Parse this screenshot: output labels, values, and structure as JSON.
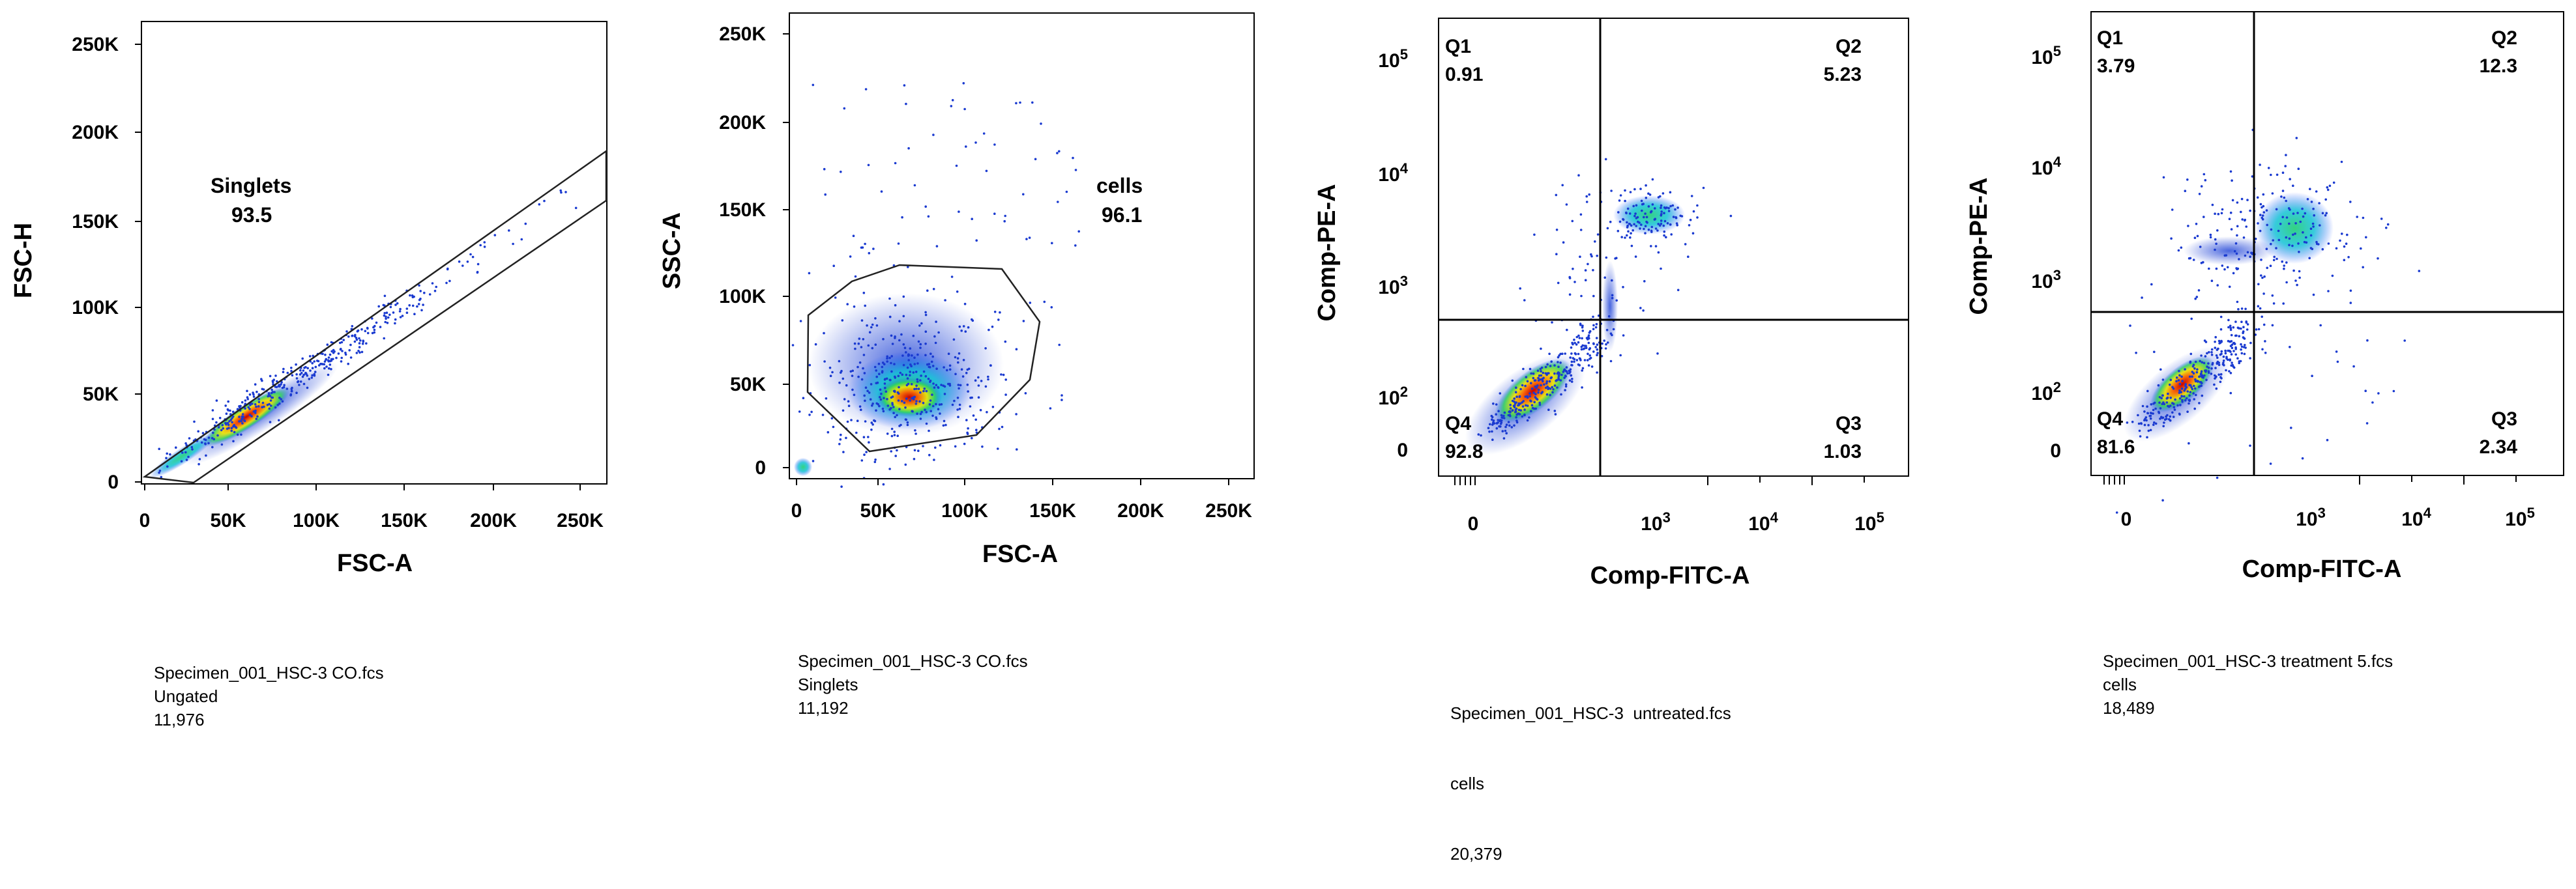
{
  "chart_data": [
    {
      "type": "scatter",
      "xlabel": "FSC-A",
      "ylabel": "FSC-H",
      "xticks": [
        "0",
        "50K",
        "100K",
        "150K",
        "200K",
        "250K"
      ],
      "yticks": [
        "0",
        "50K",
        "100K",
        "150K",
        "200K",
        "250K"
      ],
      "xlim": [
        0,
        262144
      ],
      "ylim": [
        0,
        262144
      ],
      "gate": {
        "name": "Singlets",
        "percent": "93.5"
      },
      "caption": {
        "file": "Specimen_001_HSC-3 CO.fcs",
        "population": "Ungated",
        "count": "11,976"
      }
    },
    {
      "type": "scatter",
      "xlabel": "FSC-A",
      "ylabel": "SSC-A",
      "xticks": [
        "0",
        "50K",
        "100K",
        "150K",
        "200K",
        "250K"
      ],
      "yticks": [
        "0",
        "50K",
        "100K",
        "150K",
        "200K",
        "250K"
      ],
      "xlim": [
        0,
        262144
      ],
      "ylim": [
        0,
        262144
      ],
      "gate": {
        "name": "cells",
        "percent": "96.1"
      },
      "caption": {
        "file": "Specimen_001_HSC-3 CO.fcs",
        "population": "Singlets",
        "count": "11,192"
      }
    },
    {
      "type": "scatter",
      "xlabel": "Comp-FITC-A",
      "ylabel": "Comp-PE-A",
      "scale": "biexponential",
      "quadrants": [
        {
          "name": "Q1",
          "value": "0.91"
        },
        {
          "name": "Q2",
          "value": "5.23"
        },
        {
          "name": "Q3",
          "value": "1.03"
        },
        {
          "name": "Q4",
          "value": "92.8"
        }
      ],
      "caption": {
        "file": "Specimen_001_HSC-3  untreated.fcs",
        "population": "cells",
        "count": "20,379"
      }
    },
    {
      "type": "scatter",
      "xlabel": "Comp-FITC-A",
      "ylabel": "Comp-PE-A",
      "scale": "biexponential",
      "quadrants": [
        {
          "name": "Q1",
          "value": "3.79"
        },
        {
          "name": "Q2",
          "value": "12.3"
        },
        {
          "name": "Q3",
          "value": "2.34"
        },
        {
          "name": "Q4",
          "value": "81.6"
        }
      ],
      "caption": {
        "file": "Specimen_001_HSC-3 treatment 5.fcs",
        "population": "cells",
        "count": "18,489"
      }
    }
  ]
}
